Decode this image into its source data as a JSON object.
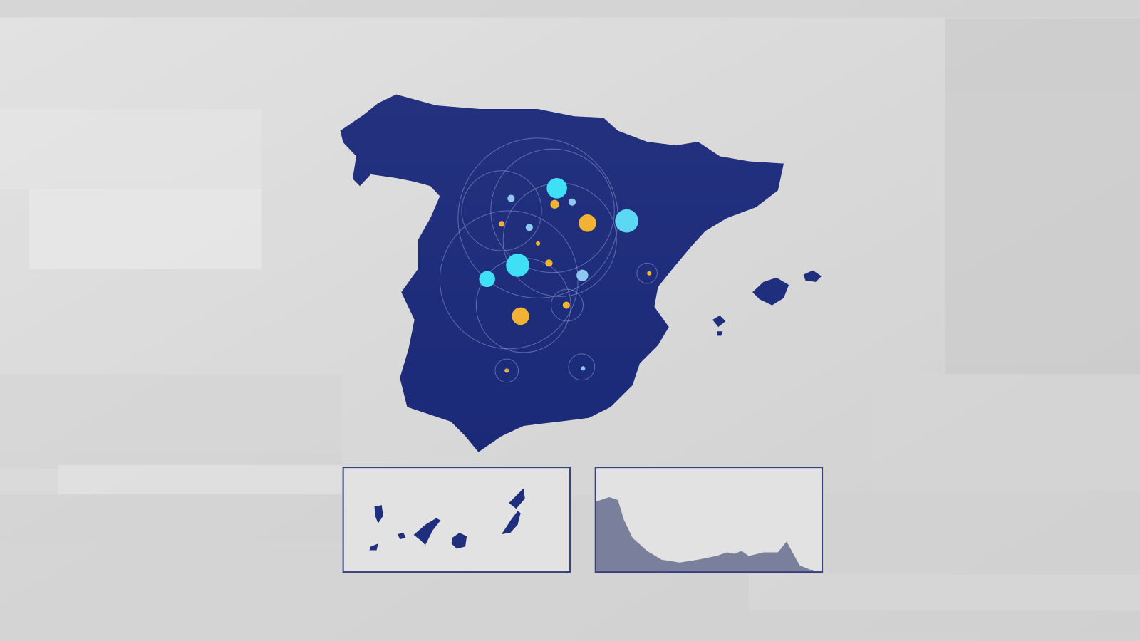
{
  "colors": {
    "background": "#dcdcdc",
    "map_fill": "#1f2f7e",
    "coast_fill": "#7a7f9c",
    "inset_border": "#3a4380",
    "marker_cyan": "#3fe0f5",
    "marker_orange": "#f2b233",
    "marker_light_blue": "#8fc8ee"
  },
  "map": {
    "main_region_icon": "spain-peninsula-map",
    "islands_icon": "balearic-islands-map",
    "insets": [
      {
        "icon": "canary-islands-map"
      },
      {
        "icon": "ceuta-melilla-coast-map"
      }
    ]
  }
}
